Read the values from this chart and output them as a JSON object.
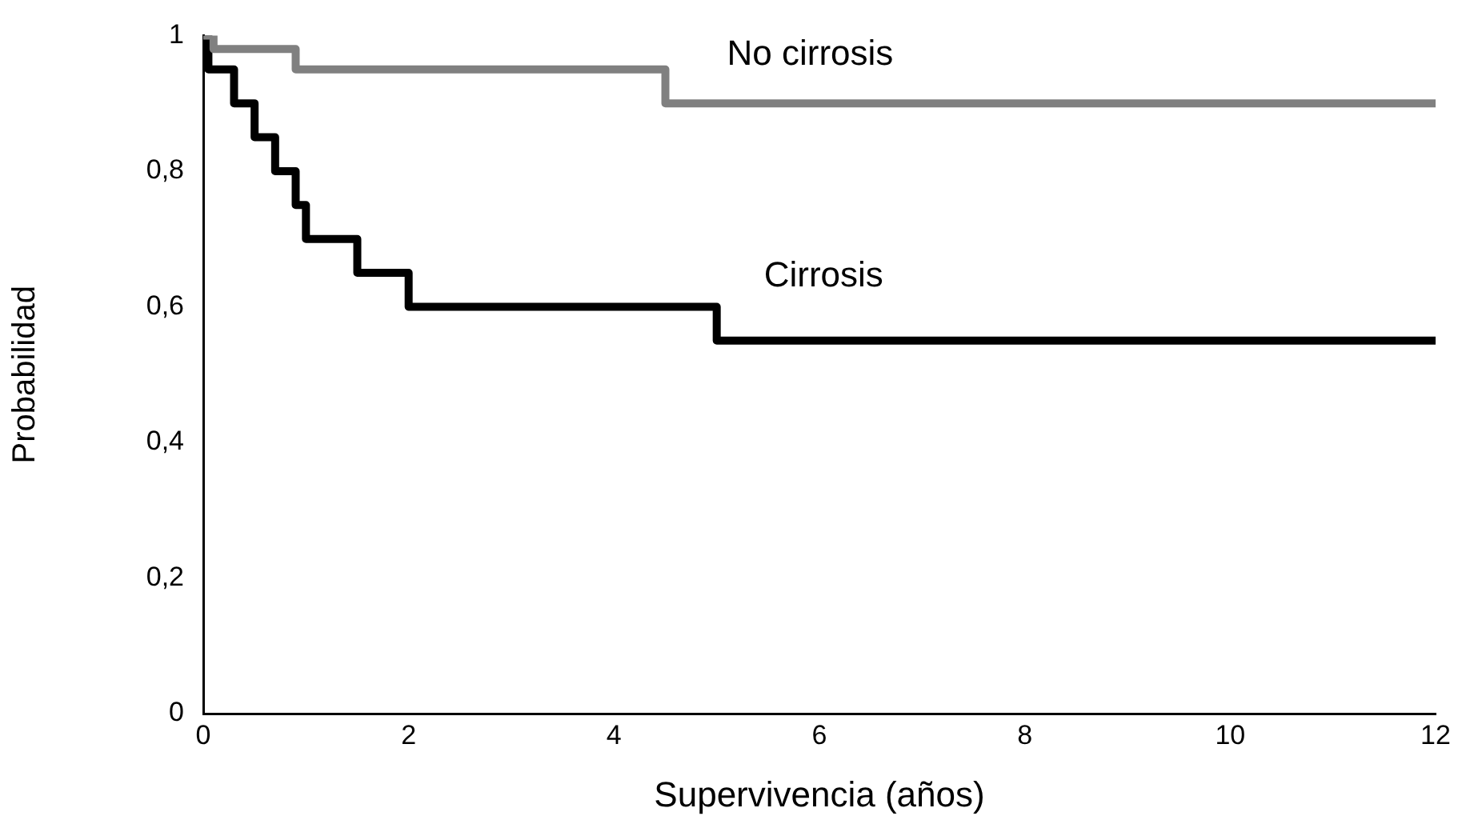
{
  "chart_data": {
    "type": "step",
    "xlabel": "Supervivencia (años)",
    "ylabel": "Probabilidad",
    "xlim": [
      0,
      12
    ],
    "xticks": [
      0,
      2,
      4,
      6,
      8,
      10,
      12
    ],
    "ylim": [
      0,
      1
    ],
    "yticks": [
      0,
      {
        "value": 0.2,
        "label": "0,2"
      },
      {
        "value": 0.4,
        "label": "0,4"
      },
      {
        "value": 0.6,
        "label": "0,6"
      },
      {
        "value": 0.8,
        "label": "0,8"
      },
      1
    ],
    "grid": false,
    "legend": false,
    "marker": "none",
    "line_style": "solid",
    "series": [
      {
        "name": "No cirrosis",
        "color": "#808080",
        "x": [
          0,
          0.1,
          0.9,
          4.5,
          12
        ],
        "values": [
          1,
          0.98,
          0.95,
          0.9,
          0.9
        ]
      },
      {
        "name": "Cirrosis",
        "color": "#000000",
        "x": [
          0,
          0.05,
          0.3,
          0.5,
          0.7,
          0.9,
          1,
          1.5,
          2,
          5,
          12
        ],
        "values": [
          1,
          0.95,
          0.9,
          0.85,
          0.8,
          0.75,
          0.7,
          0.65,
          0.6,
          0.55,
          0.55
        ]
      }
    ]
  }
}
